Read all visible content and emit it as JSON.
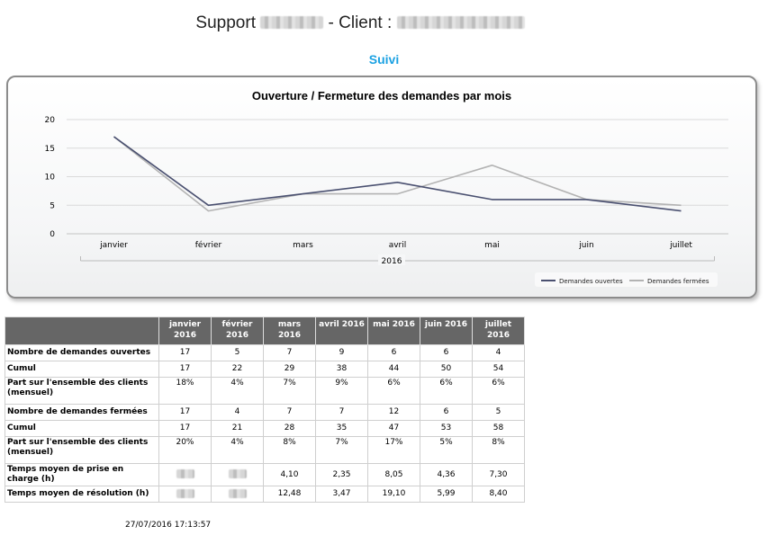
{
  "header": {
    "prefix": "Support",
    "separator": "- Client :"
  },
  "section_title": "Suivi",
  "accent_color": "#1ba1e2",
  "chart_data": {
    "type": "line",
    "title": "Ouverture / Fermeture des demandes par mois",
    "categories": [
      "janvier",
      "février",
      "mars",
      "avril",
      "mai",
      "juin",
      "juillet"
    ],
    "group_label": "2016",
    "ylim": [
      0,
      20
    ],
    "yticks": [
      0,
      5,
      10,
      15,
      20
    ],
    "grid": true,
    "legend_position": "bottom-right",
    "series": [
      {
        "name": "Demandes ouvertes",
        "color": "#4a5070",
        "values": [
          17,
          5,
          7,
          9,
          6,
          6,
          4
        ]
      },
      {
        "name": "Demandes fermées",
        "color": "#b3b3b3",
        "values": [
          17,
          4,
          7,
          7,
          12,
          6,
          5
        ]
      }
    ]
  },
  "table": {
    "columns": [
      [
        "janvier",
        "2016"
      ],
      [
        "février 2016"
      ],
      [
        "mars 2016"
      ],
      [
        "avril 2016"
      ],
      [
        "mai 2016"
      ],
      [
        "juin 2016"
      ],
      [
        "juillet 2016"
      ]
    ],
    "rows": [
      {
        "label": [
          "Nombre de demandes ouvertes"
        ],
        "values": [
          "17",
          "5",
          "7",
          "9",
          "6",
          "6",
          "4"
        ]
      },
      {
        "label": [
          "Cumul"
        ],
        "values": [
          "17",
          "22",
          "29",
          "38",
          "44",
          "50",
          "54"
        ]
      },
      {
        "label": [
          "Part sur l'ensemble des clients",
          "(mensuel)"
        ],
        "values": [
          "18%",
          "4%",
          "7%",
          "9%",
          "6%",
          "6%",
          "6%"
        ]
      },
      {
        "label": [
          "Nombre de demandes fermées"
        ],
        "values": [
          "17",
          "4",
          "7",
          "7",
          "12",
          "6",
          "5"
        ]
      },
      {
        "label": [
          "Cumul"
        ],
        "values": [
          "17",
          "21",
          "28",
          "35",
          "47",
          "53",
          "58"
        ]
      },
      {
        "label": [
          "Part sur l'ensemble des clients",
          "(mensuel)"
        ],
        "values": [
          "20%",
          "4%",
          "8%",
          "7%",
          "17%",
          "5%",
          "8%"
        ]
      },
      {
        "label": [
          "Temps moyen de prise en charge (h)"
        ],
        "values": [
          null,
          null,
          "4,10",
          "2,35",
          "8,05",
          "4,36",
          "7,30"
        ]
      },
      {
        "label": [
          "Temps moyen de résolution (h)"
        ],
        "values": [
          null,
          null,
          "12,48",
          "3,47",
          "19,10",
          "5,99",
          "8,40"
        ]
      }
    ]
  },
  "footer": {
    "timestamp": "27/07/2016 17:13:57"
  }
}
